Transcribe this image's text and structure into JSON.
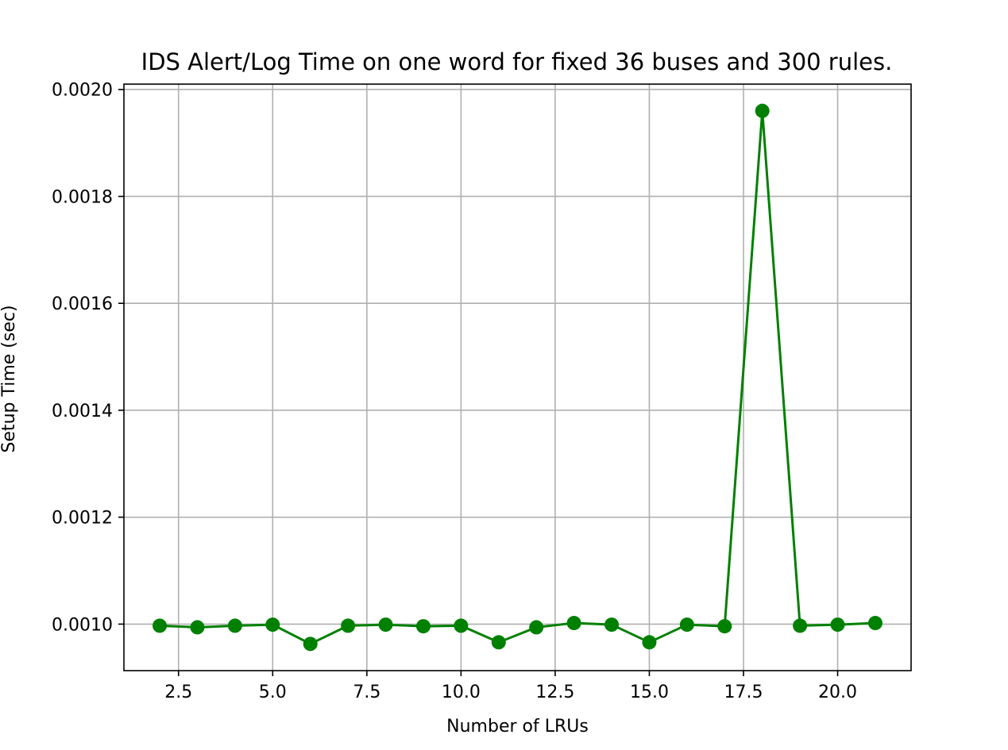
{
  "chart_data": {
    "type": "line",
    "title": "IDS Alert/Log Time on one word for fixed 36 buses and 300 rules.",
    "xlabel": "Number of LRUs",
    "ylabel": "Setup Time (sec)",
    "x": [
      2,
      3,
      4,
      5,
      6,
      7,
      8,
      9,
      10,
      11,
      12,
      13,
      14,
      15,
      16,
      17,
      18,
      19,
      20,
      21
    ],
    "series": [
      {
        "values": [
          0.000997,
          0.000994,
          0.000997,
          0.000999,
          0.000963,
          0.000997,
          0.000999,
          0.000996,
          0.000997,
          0.000966,
          0.000994,
          0.001002,
          0.000999,
          0.000966,
          0.000999,
          0.000996,
          0.00196,
          0.000997,
          0.000999,
          0.001002
        ],
        "color": "#008000",
        "marker": "circle"
      }
    ],
    "xlim": [
      1.05,
      21.95
    ],
    "ylim": [
      0.000913,
      0.00201
    ],
    "xticks": [
      2.5,
      5.0,
      7.5,
      10.0,
      12.5,
      15.0,
      17.5,
      20.0
    ],
    "xtick_labels": [
      "2.5",
      "5.0",
      "7.5",
      "10.0",
      "12.5",
      "15.0",
      "17.5",
      "20.0"
    ],
    "yticks": [
      0.001,
      0.0012,
      0.0014,
      0.0016,
      0.0018,
      0.002
    ],
    "ytick_labels": [
      "0.0010",
      "0.0012",
      "0.0014",
      "0.0016",
      "0.0018",
      "0.0020"
    ],
    "grid": true,
    "legend": "none"
  }
}
